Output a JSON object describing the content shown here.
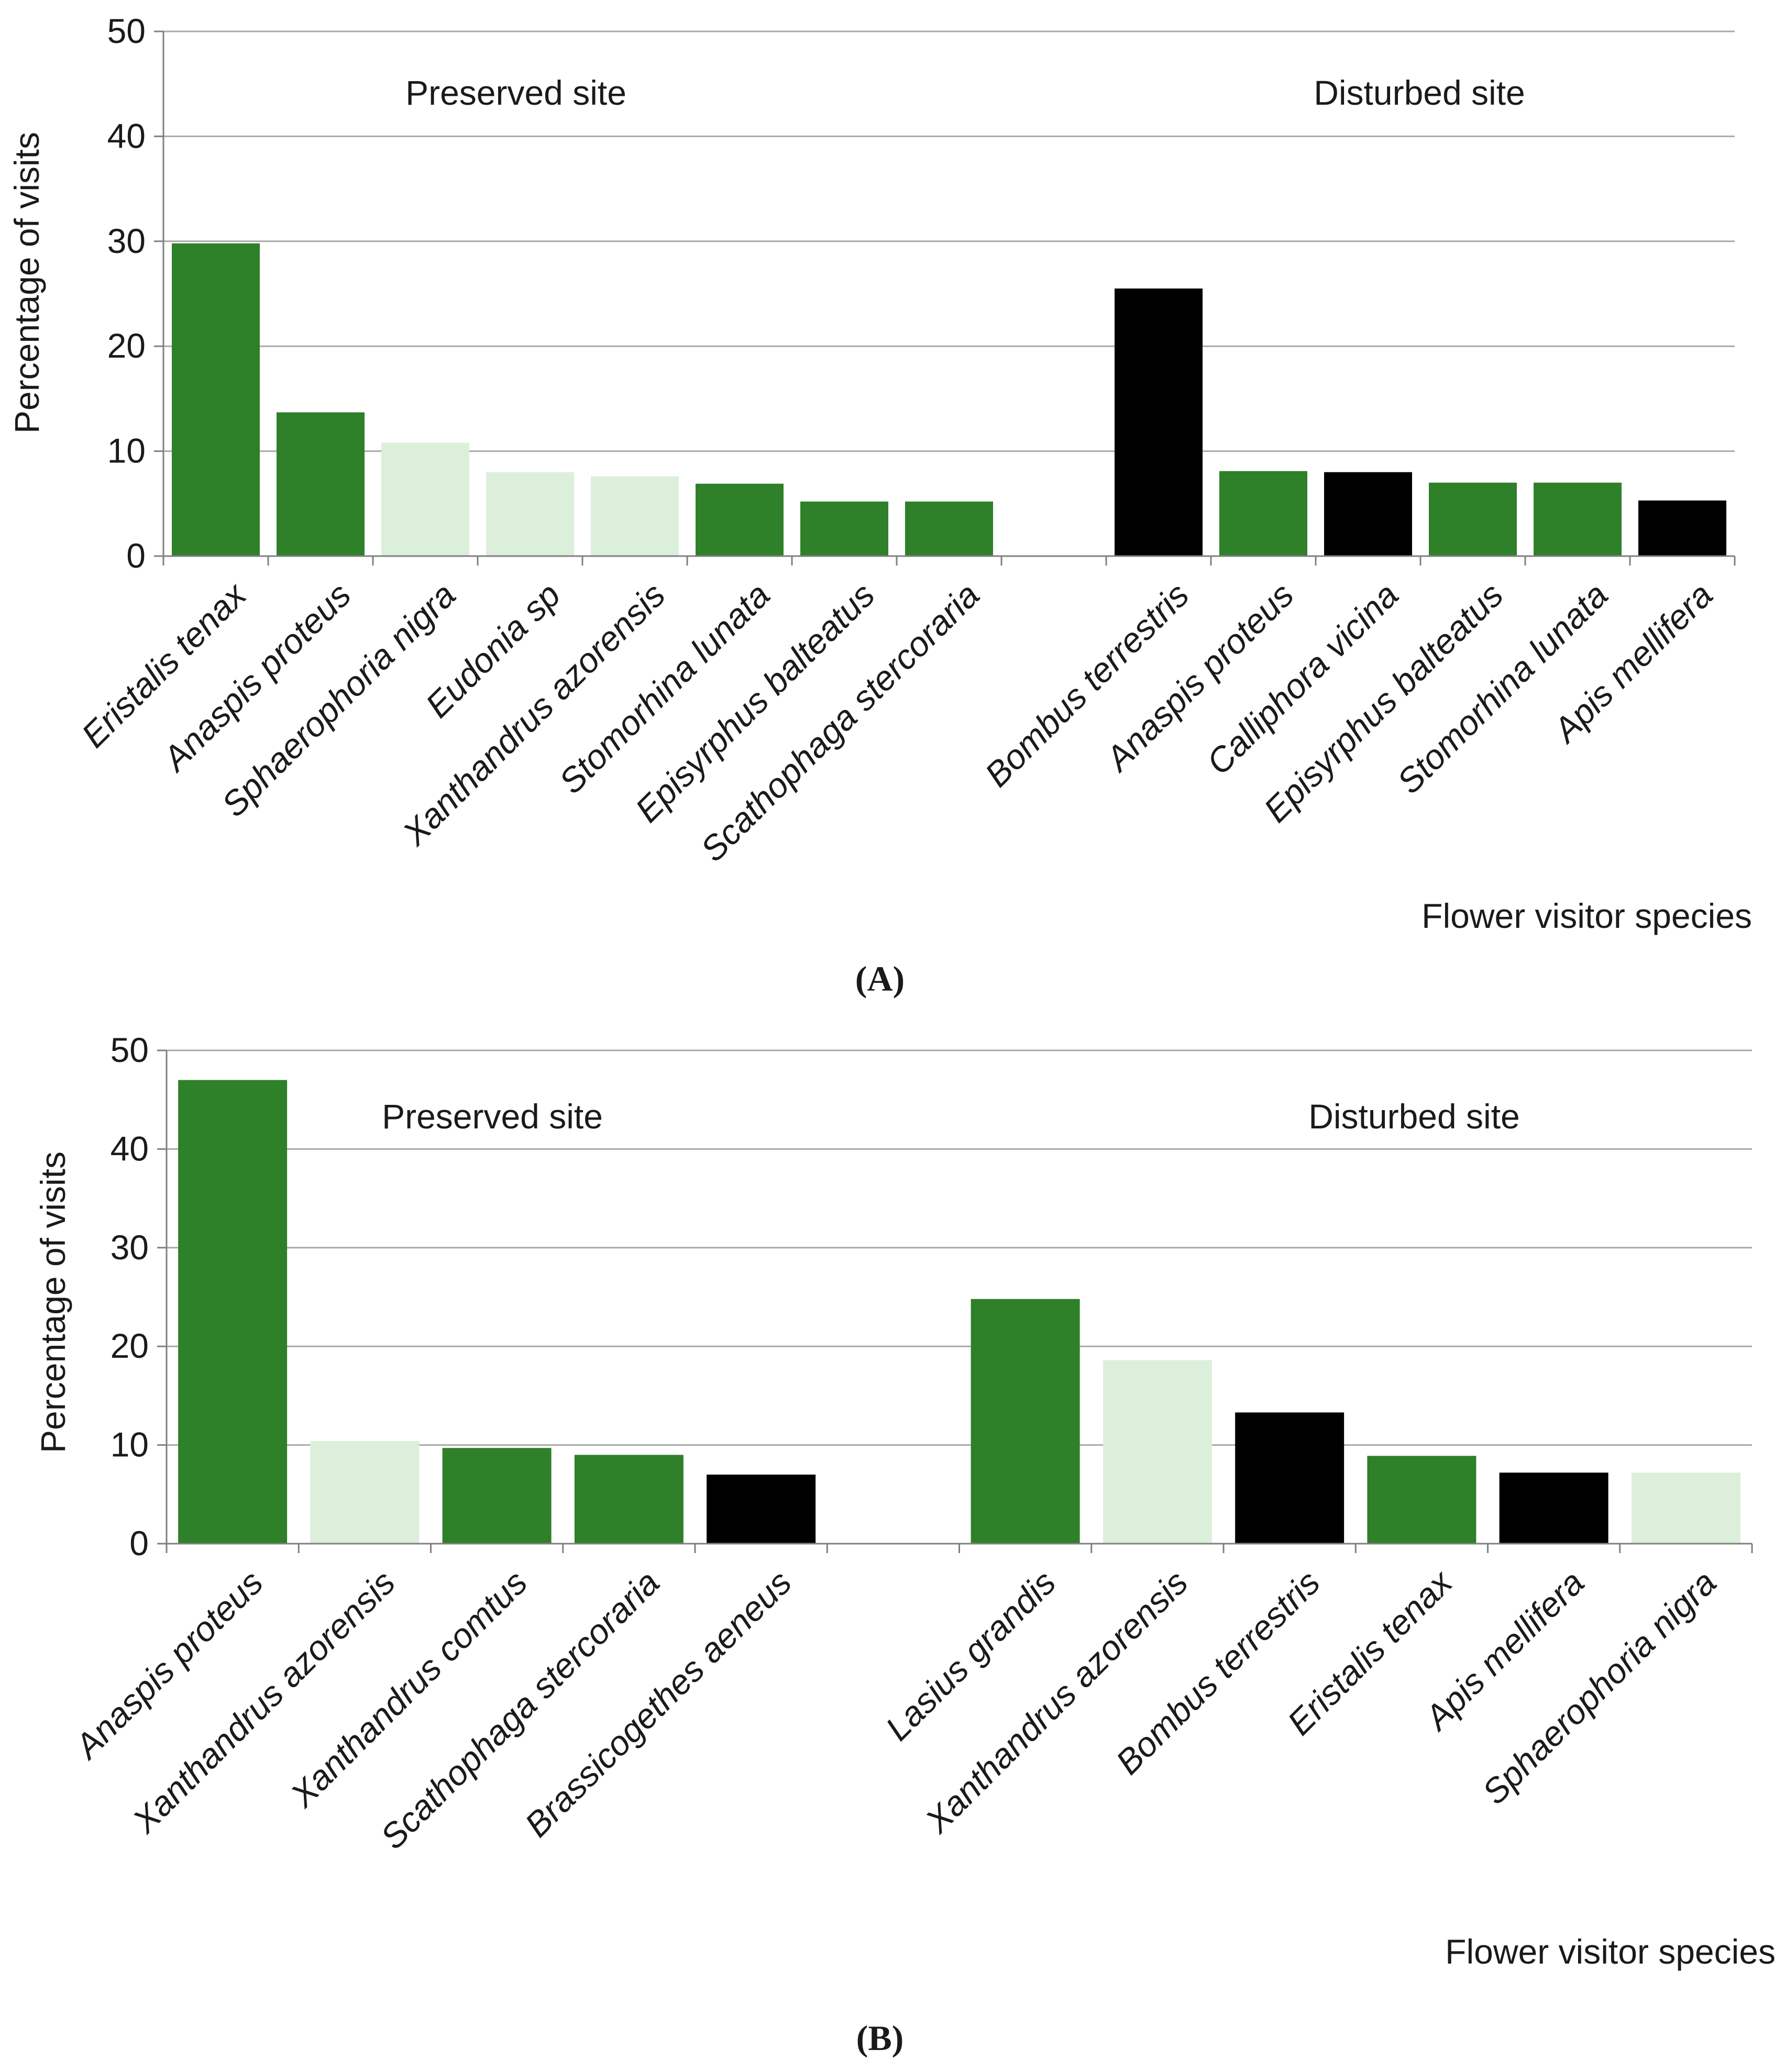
{
  "colors": {
    "native": "#2e8029",
    "endemic": "#dcefda",
    "exotic": "#000000",
    "grid": "#a9a9a9",
    "axis": "#808080"
  },
  "chart_data": [
    {
      "type": "bar",
      "panel_label": "(A)",
      "xlabel": "Flower visitor species",
      "ylabel": "Percentage of visits",
      "ylim": [
        0,
        50
      ],
      "yticks": [
        "0",
        "10",
        "20",
        "30",
        "40",
        "50"
      ],
      "grid": true,
      "groups": [
        {
          "name": "Preserved site",
          "bars": [
            {
              "species": "Eristalis tenax",
              "value": 29.8,
              "color": "native"
            },
            {
              "species": "Anaspis proteus",
              "value": 13.7,
              "color": "native"
            },
            {
              "species": "Sphaerophoria nigra",
              "value": 10.8,
              "color": "endemic"
            },
            {
              "species": "Eudonia sp",
              "value": 8.0,
              "color": "endemic"
            },
            {
              "species": "Xanthandrus azorensis",
              "value": 7.6,
              "color": "endemic"
            },
            {
              "species": "Stomorhina lunata",
              "value": 6.9,
              "color": "native"
            },
            {
              "species": "Episyrphus balteatus",
              "value": 5.2,
              "color": "native"
            },
            {
              "species": "Scathophaga stercoraria",
              "value": 5.2,
              "color": "native"
            }
          ]
        },
        {
          "name": "Disturbed site",
          "bars": [
            {
              "species": "Bombus terrestris",
              "value": 25.5,
              "color": "exotic"
            },
            {
              "species": "Anaspis proteus",
              "value": 8.1,
              "color": "native"
            },
            {
              "species": "Calliphora vicina",
              "value": 8.0,
              "color": "exotic"
            },
            {
              "species": "Episyrphus balteatus",
              "value": 7.0,
              "color": "native"
            },
            {
              "species": "Stomorhina lunata",
              "value": 7.0,
              "color": "native"
            },
            {
              "species": "Apis mellifera",
              "value": 5.3,
              "color": "exotic"
            }
          ]
        }
      ]
    },
    {
      "type": "bar",
      "panel_label": "(B)",
      "xlabel": "Flower visitor species",
      "ylabel": "Percentage of visits",
      "ylim": [
        0,
        50
      ],
      "yticks": [
        "0",
        "10",
        "20",
        "30",
        "40",
        "50"
      ],
      "grid": true,
      "groups": [
        {
          "name": "Preserved site",
          "bars": [
            {
              "species": "Anaspis proteus",
              "value": 47.0,
              "color": "native"
            },
            {
              "species": "Xanthandrus azorensis",
              "value": 10.4,
              "color": "endemic"
            },
            {
              "species": "Xanthandrus comtus",
              "value": 9.7,
              "color": "native"
            },
            {
              "species": "Scathophaga stercoraria",
              "value": 9.0,
              "color": "native"
            },
            {
              "species": "Brassicogethes aeneus",
              "value": 7.0,
              "color": "exotic"
            }
          ]
        },
        {
          "name": "Disturbed site",
          "bars": [
            {
              "species": "Lasius grandis",
              "value": 24.8,
              "color": "native"
            },
            {
              "species": "Xanthandrus azorensis",
              "value": 18.6,
              "color": "endemic"
            },
            {
              "species": "Bombus terrestris",
              "value": 13.3,
              "color": "exotic"
            },
            {
              "species": "Eristalis tenax",
              "value": 8.9,
              "color": "native"
            },
            {
              "species": "Apis mellifera",
              "value": 7.2,
              "color": "exotic"
            },
            {
              "species": "Sphaerophoria nigra",
              "value": 7.2,
              "color": "endemic"
            }
          ]
        }
      ]
    }
  ]
}
